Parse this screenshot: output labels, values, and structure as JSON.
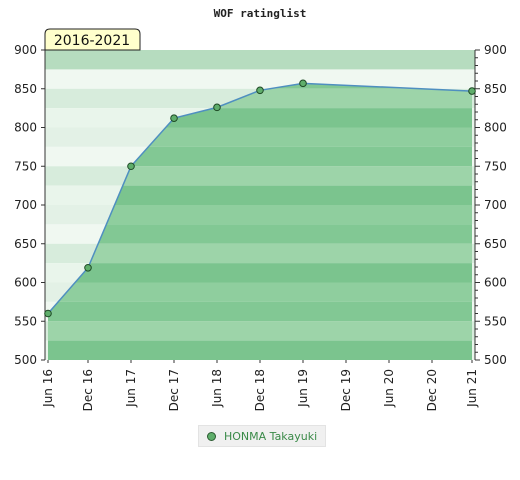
{
  "chart_data": {
    "type": "area",
    "title": "WOF ratinglist",
    "badge": "2016-2021",
    "categories": [
      "Jun 16",
      "Dec 16",
      "Jun 17",
      "Dec 17",
      "Jun 18",
      "Dec 18",
      "Jun 19",
      "Dec 19",
      "Jun 20",
      "Dec 20",
      "Jun 21"
    ],
    "x": [
      "Jun 16",
      "Dec 16",
      "Jun 17",
      "Dec 17",
      "Jun 18",
      "Dec 18",
      "Jun 19",
      "Jun 21"
    ],
    "x_index": [
      0,
      1,
      2,
      3,
      4,
      5,
      6,
      10
    ],
    "series": [
      {
        "name": "HONMA Takayuki",
        "values": [
          560,
          619,
          750,
          812,
          826,
          848,
          857,
          847
        ]
      }
    ],
    "ylim": [
      500,
      900
    ],
    "yticks": [
      500,
      550,
      600,
      650,
      700,
      750,
      800,
      850,
      900
    ],
    "grid": true,
    "legend_position": "bottom-center",
    "colors": {
      "line": "#4f8fc0",
      "marker": "#5fae6b"
    }
  }
}
